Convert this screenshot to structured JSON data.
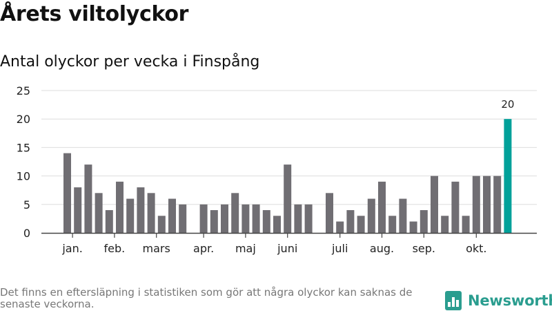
{
  "title": "Årets viltolyckor",
  "subtitle": "Antal olyckor per vecka i Finspång",
  "footnote": "Det finns en eftersläpning i statistiken som gör att några olyckor kan saknas de senaste veckorna.",
  "brand": {
    "name": "Newsworthy",
    "color": "#2a9d8f",
    "icon": "bar-chart-logo-icon"
  },
  "colors": {
    "bar": "#706e73",
    "highlight": "#00a19a",
    "grid": "#dddddd",
    "axis": "#444444",
    "text": "#222222"
  },
  "chart_data": {
    "type": "bar",
    "title": "Årets viltolyckor",
    "subtitle": "Antal olyckor per vecka i Finspång",
    "xlabel": "",
    "ylabel": "",
    "ylim": [
      0,
      25
    ],
    "yticks": [
      0,
      5,
      10,
      15,
      20,
      25
    ],
    "grid": true,
    "weeks": [
      1,
      2,
      3,
      4,
      5,
      6,
      7,
      8,
      9,
      10,
      11,
      12,
      13,
      14,
      15,
      16,
      17,
      18,
      19,
      20,
      21,
      22,
      23,
      24,
      25,
      26,
      27,
      28,
      29,
      30,
      31,
      32,
      33,
      34,
      35,
      36,
      37,
      38,
      39,
      40,
      41,
      42,
      43
    ],
    "values": [
      14,
      8,
      12,
      7,
      4,
      9,
      6,
      8,
      7,
      3,
      6,
      5,
      null,
      5,
      4,
      5,
      7,
      5,
      5,
      4,
      3,
      12,
      5,
      5,
      null,
      7,
      2,
      4,
      3,
      6,
      9,
      3,
      6,
      2,
      4,
      10,
      3,
      9,
      3,
      10,
      10,
      10,
      20
    ],
    "month_labels": [
      {
        "label": "jan.",
        "week": 1.5
      },
      {
        "label": "feb.",
        "week": 5.5
      },
      {
        "label": "mars",
        "week": 9.5
      },
      {
        "label": "apr.",
        "week": 14
      },
      {
        "label": "maj",
        "week": 18
      },
      {
        "label": "juni",
        "week": 22
      },
      {
        "label": "juli",
        "week": 27
      },
      {
        "label": "aug.",
        "week": 31
      },
      {
        "label": "sep.",
        "week": 35
      },
      {
        "label": "okt.",
        "week": 40
      }
    ],
    "highlight": {
      "week": 43,
      "value": 20,
      "label": "20"
    }
  }
}
